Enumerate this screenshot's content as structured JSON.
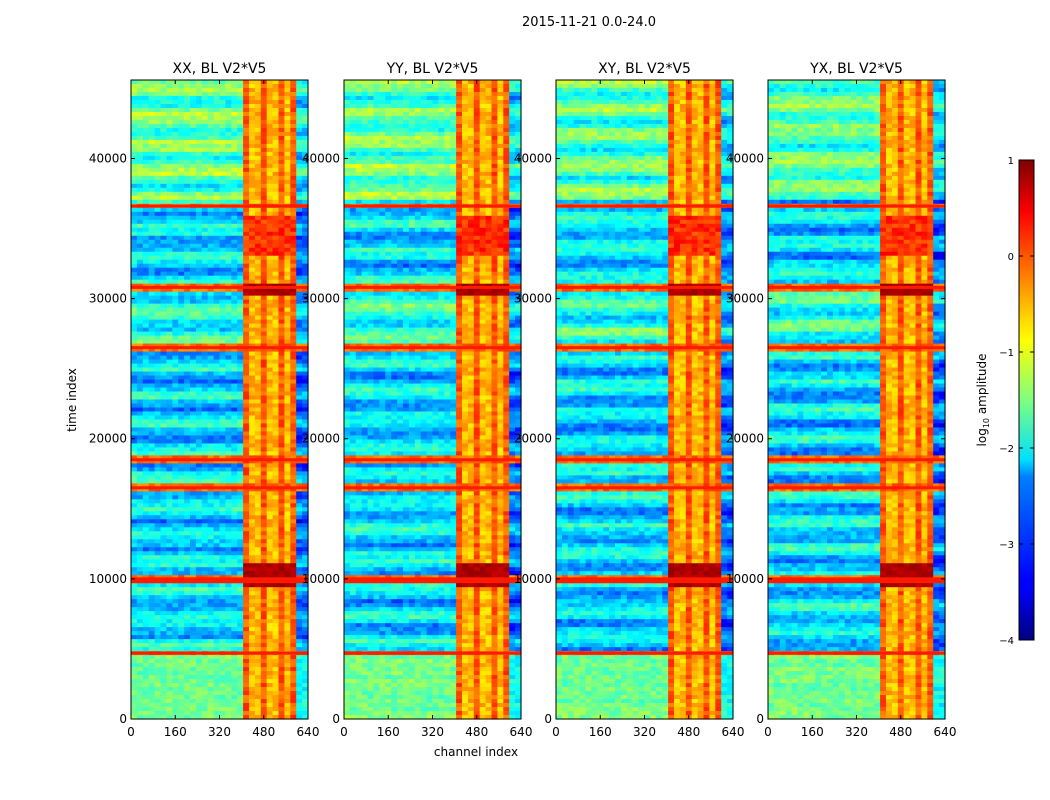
{
  "chart_data": {
    "type": "heatmap",
    "suptitle": "2015-11-21 0.0-24.0",
    "xlabel": "channel index",
    "ylabel": "time index",
    "xlim": [
      0,
      640
    ],
    "ylim": [
      0,
      45600
    ],
    "xticks": [
      0,
      160,
      320,
      480,
      640
    ],
    "yticks": [
      0,
      10000,
      20000,
      30000,
      40000
    ],
    "colormap": "jet",
    "colorbar": {
      "label_main": "log",
      "label_sub": "10",
      "label_tail": " amplitude",
      "range": [
        -4,
        1
      ],
      "ticks": [
        1,
        0,
        -1,
        -2,
        -3,
        -4
      ],
      "tick_labels": [
        "1",
        "0",
        "−1",
        "−2",
        "−3",
        "−4"
      ]
    },
    "panels": [
      {
        "title": "XX, BL V2*V5",
        "polarization": "XX"
      },
      {
        "title": "YY, BL V2*V5",
        "polarization": "YY"
      },
      {
        "title": "XY, BL V2*V5",
        "polarization": "XY"
      },
      {
        "title": "YX, BL V2*V5",
        "polarization": "YX"
      }
    ],
    "features": {
      "rfi_channel_band": [
        405,
        600
      ],
      "strong_time_rows": [
        4700,
        9800,
        10000,
        16500,
        18500,
        26500,
        30800,
        36600
      ],
      "quiet_block_time": [
        0,
        4500
      ]
    }
  }
}
